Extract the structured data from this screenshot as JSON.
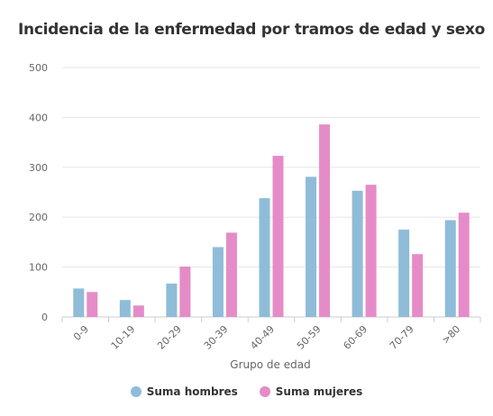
{
  "chart_data": {
    "type": "bar",
    "title": "Incidencia de la enfermedad por tramos de edad y sexo",
    "xlabel": "Grupo de edad",
    "ylabel": "",
    "ylim": [
      0,
      500
    ],
    "yticks": [
      0,
      100,
      200,
      300,
      400,
      500
    ],
    "grid": true,
    "legend_position": "bottom",
    "categories": [
      "0-9",
      "10-19",
      "20-29",
      "30-39",
      "40-49",
      "50-59",
      "60-69",
      "70-79",
      ">80"
    ],
    "series": [
      {
        "name": "Suma hombres",
        "color": "#8fbcd8",
        "values": [
          57,
          34,
          67,
          140,
          238,
          281,
          253,
          175,
          194
        ]
      },
      {
        "name": "Suma mujeres",
        "color": "#e58cc8",
        "values": [
          50,
          23,
          101,
          169,
          323,
          386,
          265,
          126,
          209
        ]
      }
    ]
  }
}
